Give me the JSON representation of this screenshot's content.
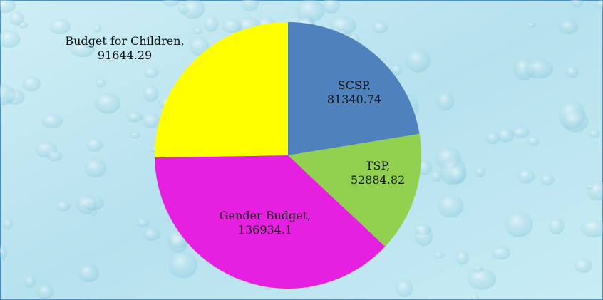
{
  "chart_data": {
    "type": "pie",
    "values": [
      81340.74,
      52884.82,
      136934.1,
      91644.29
    ],
    "value_labels": [
      "SCSP, 81340.74",
      "TSP, 52884.82",
      "Gender Budget, 136934.1",
      "Budget for Children, 91644.29"
    ],
    "colors": [
      "#4f81bd",
      "#92d050",
      "#e620e0",
      "#ffff00"
    ]
  }
}
